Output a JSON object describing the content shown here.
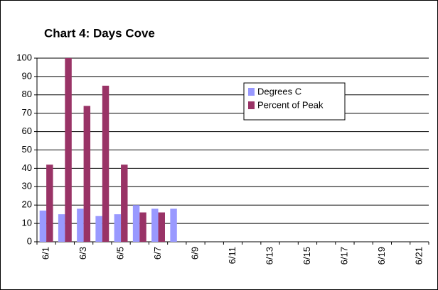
{
  "chart_data": {
    "type": "bar",
    "title": "Chart 4:  Days Cove",
    "categories": [
      "6/1",
      null,
      "6/3",
      null,
      "6/5",
      null,
      "6/7",
      null,
      "6/9",
      null,
      "6/11",
      null,
      "6/13",
      null,
      "6/15",
      null,
      "6/17",
      null,
      "6/19",
      null,
      "6/21"
    ],
    "series": [
      {
        "name": "Degrees C",
        "color": "#9999ff",
        "values": [
          17,
          15,
          18,
          14,
          15,
          20,
          18,
          18,
          null,
          null,
          null,
          null,
          null,
          null,
          null,
          null,
          null,
          null,
          null,
          null,
          null
        ]
      },
      {
        "name": "Percent of Peak",
        "color": "#993366",
        "values": [
          42,
          100,
          74,
          85,
          42,
          16,
          16,
          null,
          null,
          null,
          null,
          null,
          null,
          null,
          null,
          null,
          null,
          null,
          null,
          null,
          null
        ]
      }
    ],
    "ylim": [
      0,
      100
    ],
    "yticks": [
      0,
      10,
      20,
      30,
      40,
      50,
      60,
      70,
      80,
      90,
      100
    ],
    "grid": true
  }
}
